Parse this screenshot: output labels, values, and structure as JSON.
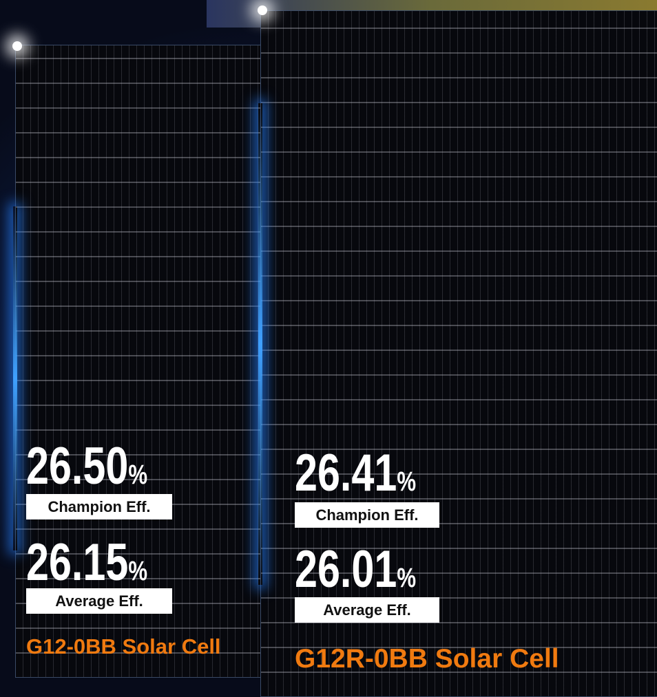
{
  "cells": [
    {
      "name": "G12-0BB Solar Cell",
      "metrics": [
        {
          "value": "26.50",
          "unit": "%",
          "label": "Champion Eff."
        },
        {
          "value": "26.15",
          "unit": "%",
          "label": "Average Eff."
        }
      ]
    },
    {
      "name": "G12R-0BB Solar Cell",
      "metrics": [
        {
          "value": "26.41",
          "unit": "%",
          "label": "Champion Eff."
        },
        {
          "value": "26.01",
          "unit": "%",
          "label": "Average Eff."
        }
      ]
    }
  ]
}
